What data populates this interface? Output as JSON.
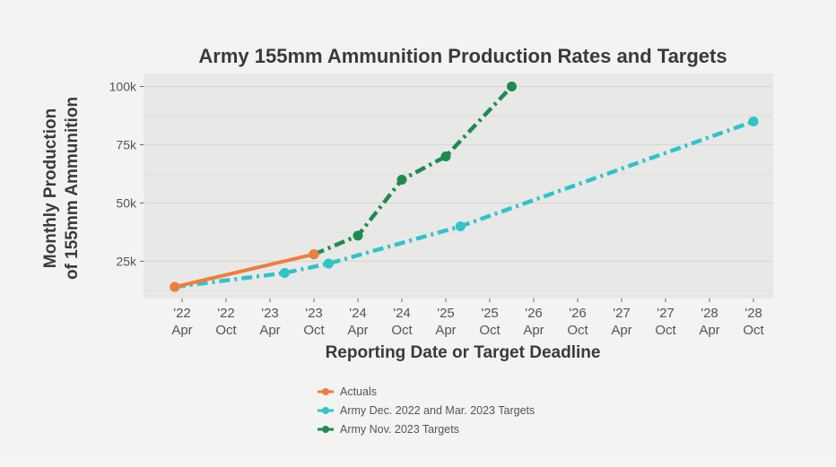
{
  "chart_data": {
    "type": "line",
    "title": "Army 155mm Ammunition Production Rates and Targets",
    "xlabel": "Reporting Date or Target Deadline",
    "ylabel": [
      "Monthly Production",
      "of 155mm Ammunition"
    ],
    "x_ticks": [
      {
        "date": "2022-04",
        "top": "'22",
        "bottom": "Apr"
      },
      {
        "date": "2022-10",
        "top": "'22",
        "bottom": "Oct"
      },
      {
        "date": "2023-04",
        "top": "'23",
        "bottom": "Apr"
      },
      {
        "date": "2023-10",
        "top": "'23",
        "bottom": "Oct"
      },
      {
        "date": "2024-04",
        "top": "'24",
        "bottom": "Apr"
      },
      {
        "date": "2024-10",
        "top": "'24",
        "bottom": "Oct"
      },
      {
        "date": "2025-04",
        "top": "'25",
        "bottom": "Apr"
      },
      {
        "date": "2025-10",
        "top": "'25",
        "bottom": "Oct"
      },
      {
        "date": "2026-04",
        "top": "'26",
        "bottom": "Apr"
      },
      {
        "date": "2026-10",
        "top": "'26",
        "bottom": "Oct"
      },
      {
        "date": "2027-04",
        "top": "'27",
        "bottom": "Apr"
      },
      {
        "date": "2027-10",
        "top": "'27",
        "bottom": "Oct"
      },
      {
        "date": "2028-04",
        "top": "'28",
        "bottom": "Apr"
      },
      {
        "date": "2028-10",
        "top": "'28",
        "bottom": "Oct"
      }
    ],
    "y_ticks": [
      {
        "value": 25000,
        "label": "25k"
      },
      {
        "value": 50000,
        "label": "50k"
      },
      {
        "value": 75000,
        "label": "75k"
      },
      {
        "value": 100000,
        "label": "100k"
      }
    ],
    "xlim": [
      "2022-02",
      "2029-01"
    ],
    "ylim": [
      9000,
      103000
    ],
    "grid": true,
    "legend_position": "bottom",
    "series": [
      {
        "name": "Actuals",
        "color": "#ef7d3c",
        "style": "solid",
        "points": [
          {
            "x": "2022-03",
            "y": 14000
          },
          {
            "x": "2023-10",
            "y": 28000
          }
        ]
      },
      {
        "name": "Army Dec. 2022 and Mar. 2023 Targets",
        "color": "#2ec4c9",
        "style": "dashdot",
        "points": [
          {
            "x": "2022-03",
            "y": 14000
          },
          {
            "x": "2023-06",
            "y": 20000
          },
          {
            "x": "2023-12",
            "y": 24000
          },
          {
            "x": "2025-06",
            "y": 40000
          },
          {
            "x": "2028-10",
            "y": 85000
          }
        ]
      },
      {
        "name": "Army Nov. 2023 Targets",
        "color": "#1e8c4e",
        "style": "dashdot",
        "points": [
          {
            "x": "2023-10",
            "y": 28000
          },
          {
            "x": "2024-04",
            "y": 36000
          },
          {
            "x": "2024-10",
            "y": 60000
          },
          {
            "x": "2025-04",
            "y": 70000
          },
          {
            "x": "2026-01",
            "y": 100000
          }
        ]
      }
    ]
  }
}
